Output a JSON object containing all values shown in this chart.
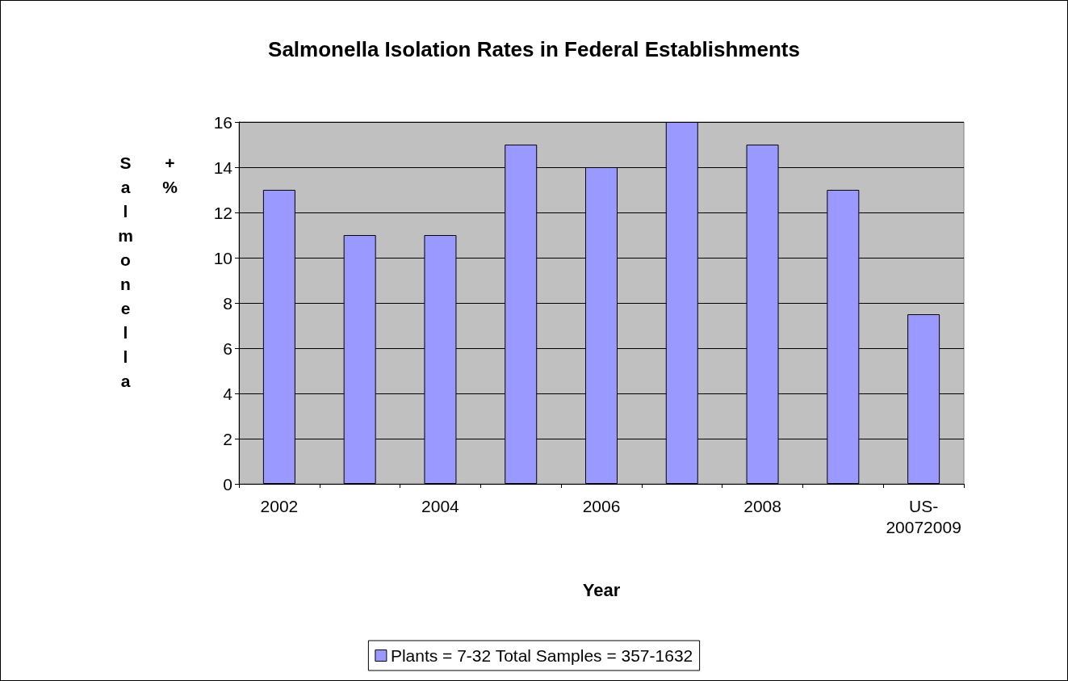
{
  "chart_data": {
    "type": "bar",
    "title": "Salmonella Isolation Rates in Federal Establishments",
    "xlabel": "Year",
    "ylabel": "Salmonella +%",
    "categories": [
      "2002",
      null,
      "2004",
      null,
      "2006",
      null,
      "2008",
      null,
      "US-\n20072009"
    ],
    "series": [
      {
        "name": "Plants = 7-32 Total Samples = 357-1632",
        "color": "#9999ff",
        "values": [
          13,
          11,
          11,
          15,
          14,
          16,
          15,
          13,
          7.5
        ]
      }
    ],
    "ylim": [
      0,
      16
    ],
    "yticks": [
      0,
      2,
      4,
      6,
      8,
      10,
      12,
      14,
      16
    ],
    "grid": "y",
    "legend": "bottom"
  }
}
